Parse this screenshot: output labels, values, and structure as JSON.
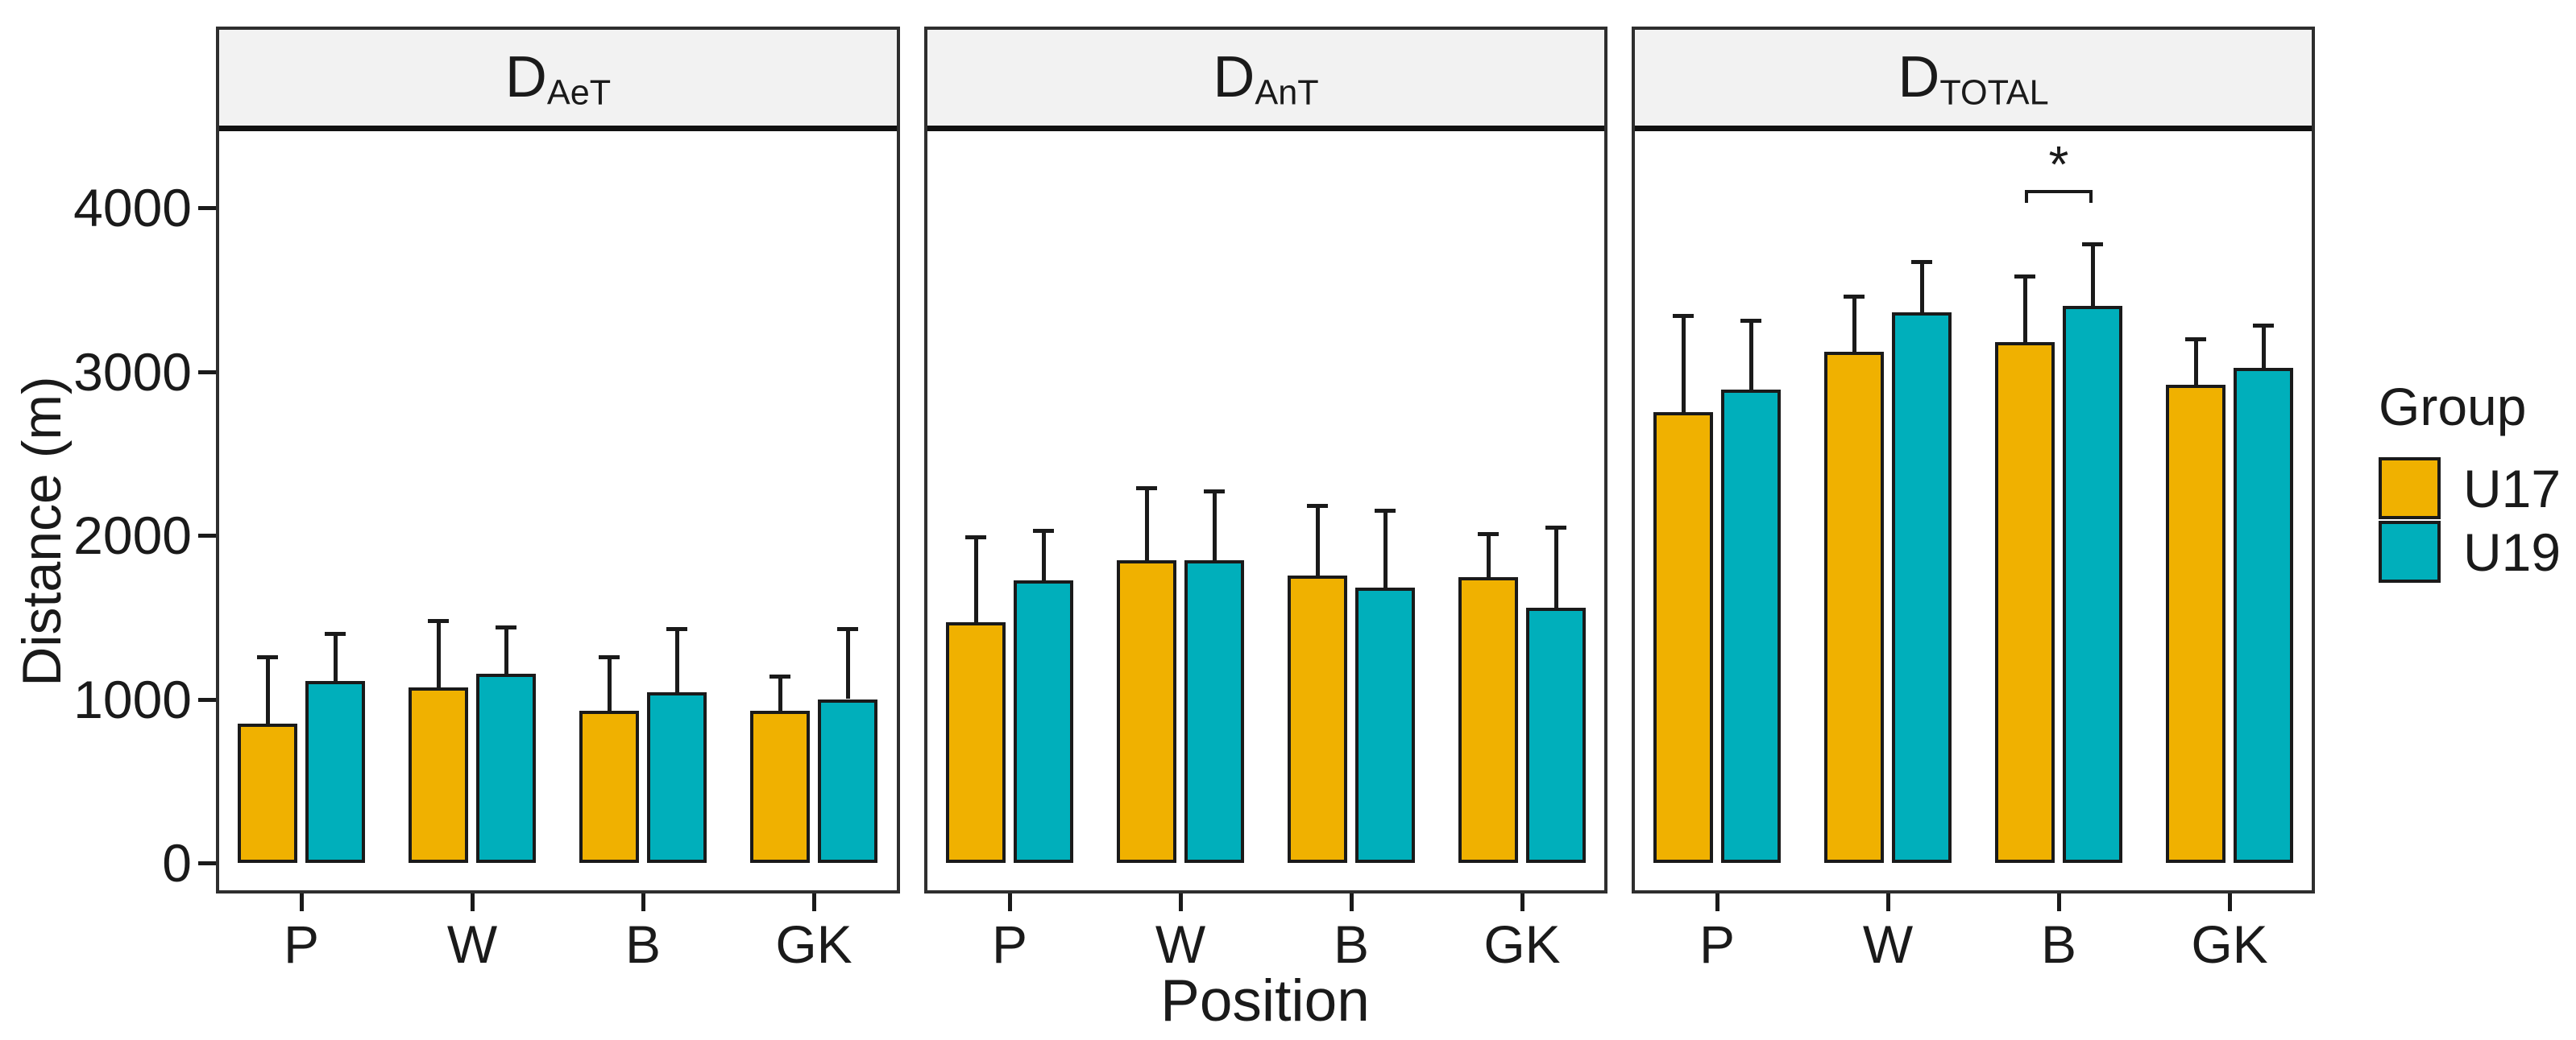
{
  "chart_data": {
    "type": "bar",
    "faceted": true,
    "ylabel": "Distance (m)",
    "xlabel": "Position",
    "ylim": [
      0,
      4480
    ],
    "yticks": [
      0,
      1000,
      2000,
      3000,
      4000
    ],
    "categories": [
      "P",
      "W",
      "B",
      "GK"
    ],
    "grid": "off",
    "error_bars": "upper whisker with cap (mean + SD)",
    "legend": {
      "title": "Group",
      "position": "right",
      "entries": [
        "U17",
        "U19"
      ]
    },
    "colors": {
      "U17": "#F0B100",
      "U19": "#00AFBB",
      "bar_border": "#1a1a1a",
      "strip_background": "#f2f2f2",
      "panel_border": "#2e2e2e"
    },
    "panels": [
      {
        "label_main": "D",
        "label_sub": "AeT",
        "series": [
          {
            "name": "U17",
            "values": [
              850,
              1070,
              930,
              930
            ],
            "sd": [
              420,
              420,
              340,
              220
            ]
          },
          {
            "name": "U19",
            "values": [
              1110,
              1155,
              1040,
              1000
            ],
            "sd": [
              300,
              295,
              400,
              440
            ]
          }
        ]
      },
      {
        "label_main": "D",
        "label_sub": "AnT",
        "series": [
          {
            "name": "U17",
            "values": [
              1470,
              1850,
              1755,
              1745
            ],
            "sd": [
              530,
              450,
              435,
              275
            ]
          },
          {
            "name": "U19",
            "values": [
              1725,
              1850,
              1680,
              1560
            ],
            "sd": [
              315,
              430,
              480,
              500
            ]
          }
        ]
      },
      {
        "label_main": "D",
        "label_sub": "TOTAL",
        "series": [
          {
            "name": "U17",
            "values": [
              2750,
              3120,
              3180,
              2920
            ],
            "sd": [
              600,
              350,
              410,
              290
            ]
          },
          {
            "name": "U19",
            "values": [
              2890,
              3360,
              3400,
              3020
            ],
            "sd": [
              430,
              320,
              390,
              270
            ]
          }
        ],
        "annotation": {
          "type": "significance-bracket",
          "group": "B",
          "label": "*"
        }
      }
    ]
  }
}
